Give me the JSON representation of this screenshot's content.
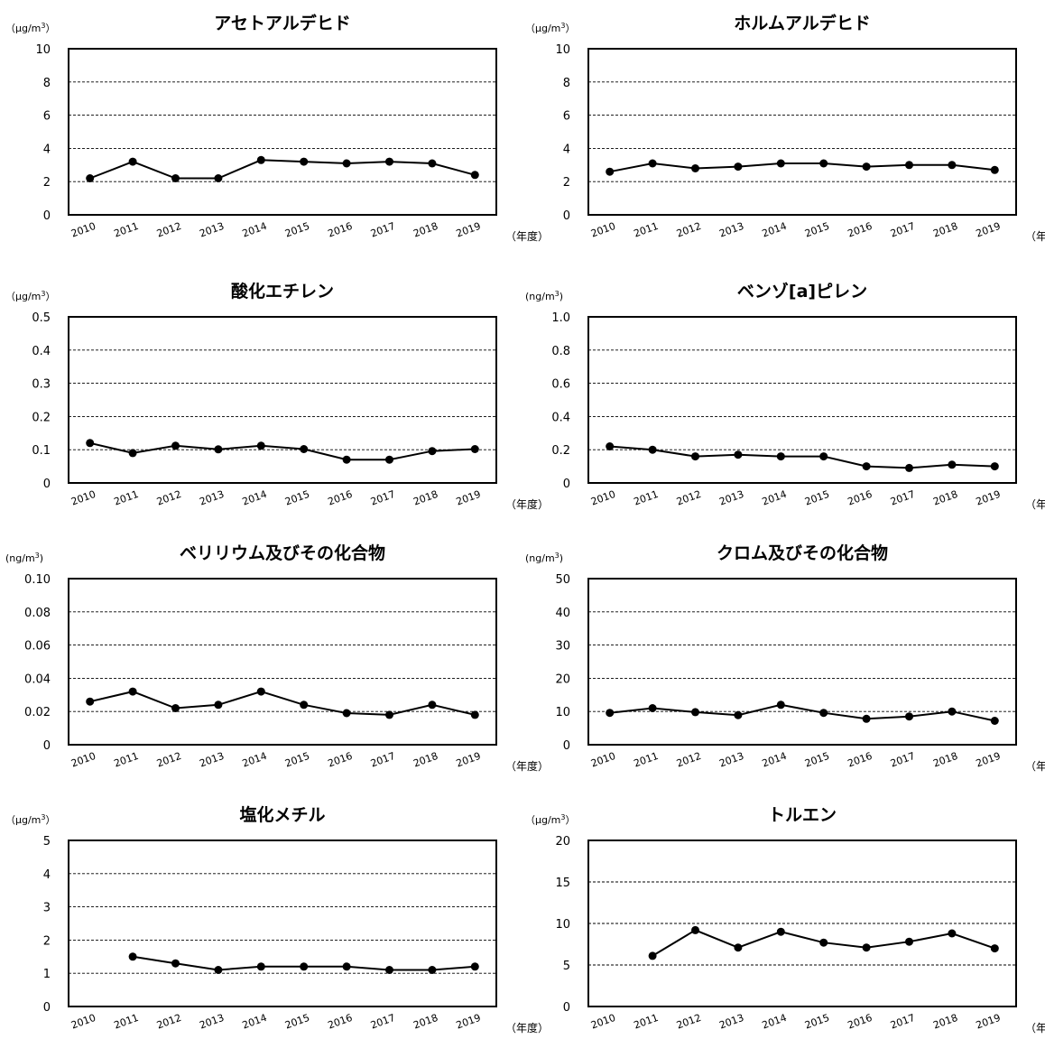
{
  "chart_data": [
    {
      "type": "line",
      "title": "アセトアルデヒド",
      "ylabel": "（μg/m3）",
      "x_suffix": "（年度）",
      "categories": [
        "2010",
        "2011",
        "2012",
        "2013",
        "2014",
        "2015",
        "2016",
        "2017",
        "2018",
        "2019"
      ],
      "y_ticks": [
        "0",
        "2",
        "4",
        "6",
        "8",
        "10"
      ],
      "ylim": [
        0,
        10
      ],
      "grid": true,
      "values": [
        2.2,
        3.2,
        2.2,
        2.2,
        3.3,
        3.2,
        3.1,
        3.2,
        3.1,
        2.4
      ],
      "color": "#000000"
    },
    {
      "type": "line",
      "title": "ホルムアルデヒド",
      "ylabel": "（μg/m3）",
      "x_suffix": "（年度）",
      "categories": [
        "2010",
        "2011",
        "2012",
        "2013",
        "2014",
        "2015",
        "2016",
        "2017",
        "2018",
        "2019"
      ],
      "y_ticks": [
        "0",
        "2",
        "4",
        "6",
        "8",
        "10"
      ],
      "ylim": [
        0,
        10
      ],
      "grid": true,
      "values": [
        2.6,
        3.1,
        2.8,
        2.9,
        3.1,
        3.1,
        2.9,
        3.0,
        3.0,
        2.7
      ],
      "color": "#000000"
    },
    {
      "type": "line",
      "title": "酸化エチレン",
      "ylabel": "（μg/m3）",
      "x_suffix": "（年度）",
      "categories": [
        "2010",
        "2011",
        "2012",
        "2013",
        "2014",
        "2015",
        "2016",
        "2017",
        "2018",
        "2019"
      ],
      "y_ticks": [
        "0",
        "0.1",
        "0.2",
        "0.3",
        "0.4",
        "0.5"
      ],
      "ylim": [
        0,
        0.5
      ],
      "grid": true,
      "values": [
        0.12,
        0.09,
        0.112,
        0.101,
        0.112,
        0.102,
        0.07,
        0.07,
        0.096,
        0.102
      ],
      "color": "#000000"
    },
    {
      "type": "line",
      "title": "ベンゾ[a]ピレン",
      "ylabel": "(ng/m3)",
      "x_suffix": "（年度）",
      "categories": [
        "2010",
        "2011",
        "2012",
        "2013",
        "2014",
        "2015",
        "2016",
        "2017",
        "2018",
        "2019"
      ],
      "y_ticks": [
        "0",
        "0.2",
        "0.4",
        "0.6",
        "0.8",
        "1.0"
      ],
      "ylim": [
        0,
        1.0
      ],
      "grid": true,
      "values": [
        0.22,
        0.2,
        0.16,
        0.17,
        0.16,
        0.16,
        0.1,
        0.09,
        0.11,
        0.1
      ],
      "color": "#000000"
    },
    {
      "type": "line",
      "title": "ベリリウム及びその化合物",
      "ylabel": "(ng/m3)",
      "x_suffix": "（年度）",
      "categories": [
        "2010",
        "2011",
        "2012",
        "2013",
        "2014",
        "2015",
        "2016",
        "2017",
        "2018",
        "2019"
      ],
      "y_ticks": [
        "0",
        "0.02",
        "0.04",
        "0.06",
        "0.08",
        "0.10"
      ],
      "ylim": [
        0,
        0.1
      ],
      "grid": true,
      "values": [
        0.026,
        0.032,
        0.022,
        0.024,
        0.032,
        0.024,
        0.019,
        0.018,
        0.024,
        0.018
      ],
      "color": "#000000"
    },
    {
      "type": "line",
      "title": "クロム及びその化合物",
      "ylabel": "(ng/m3)",
      "x_suffix": "（年度）",
      "categories": [
        "2010",
        "2011",
        "2012",
        "2013",
        "2014",
        "2015",
        "2016",
        "2017",
        "2018",
        "2019"
      ],
      "y_ticks": [
        "0",
        "10",
        "20",
        "30",
        "40",
        "50"
      ],
      "ylim": [
        0,
        50
      ],
      "grid": true,
      "values": [
        9.6,
        11.0,
        9.8,
        8.9,
        12.0,
        9.6,
        7.8,
        8.5,
        10.0,
        7.2
      ],
      "color": "#000000"
    },
    {
      "type": "line",
      "title": "塩化メチル",
      "ylabel": "（μg/m3）",
      "x_suffix": "（年度）",
      "categories": [
        "2010",
        "2011",
        "2012",
        "2013",
        "2014",
        "2015",
        "2016",
        "2017",
        "2018",
        "2019"
      ],
      "y_ticks": [
        "0",
        "1",
        "2",
        "3",
        "4",
        "5"
      ],
      "ylim": [
        0,
        5
      ],
      "grid": true,
      "values": [
        null,
        1.5,
        1.3,
        1.1,
        1.2,
        1.2,
        1.2,
        1.1,
        1.1,
        1.2
      ],
      "color": "#000000"
    },
    {
      "type": "line",
      "title": "トルエン",
      "ylabel": "（μg/m3）",
      "x_suffix": "（年度）",
      "categories": [
        "2010",
        "2011",
        "2012",
        "2013",
        "2014",
        "2015",
        "2016",
        "2017",
        "2018",
        "2019"
      ],
      "y_ticks": [
        "0",
        "5",
        "10",
        "15",
        "20"
      ],
      "ylim": [
        0,
        20
      ],
      "grid": true,
      "values": [
        null,
        6.1,
        9.2,
        7.1,
        9.0,
        7.7,
        7.1,
        7.8,
        8.8,
        7.0
      ],
      "color": "#000000"
    }
  ]
}
